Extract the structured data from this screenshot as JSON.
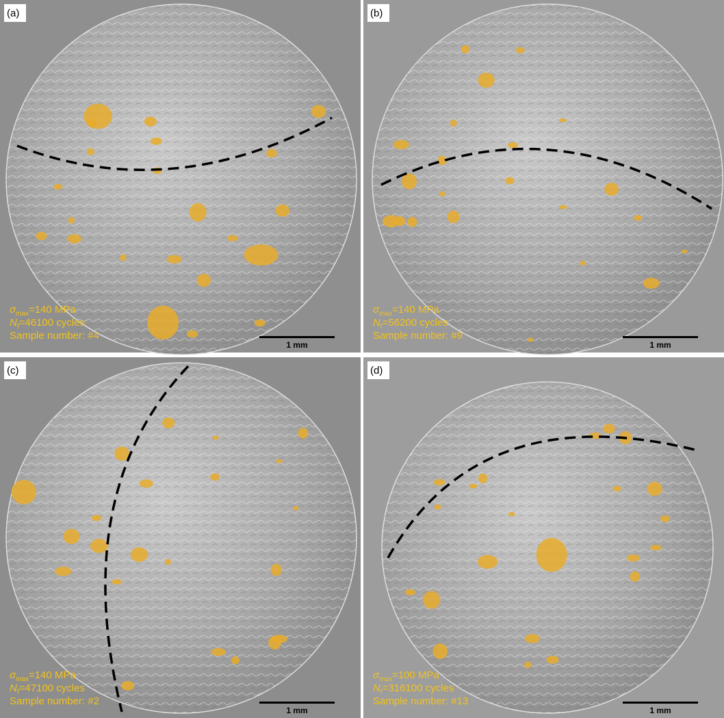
{
  "panels": [
    {
      "label": "(a)",
      "stress": {
        "symbol": "σ",
        "subscript": "max",
        "text": "=140 MPa"
      },
      "cycles": {
        "symbol": "N",
        "subscript": "f",
        "text": "=46100 cycles"
      },
      "sample": "Sample number: #4",
      "scale": "1 mm"
    },
    {
      "label": "(b)",
      "stress": {
        "symbol": "σ",
        "subscript": "max",
        "text": "=140 MPa"
      },
      "cycles": {
        "symbol": "N",
        "subscript": "f",
        "text": "=56200 cycles"
      },
      "sample": "Sample number: #9",
      "scale": "1 mm"
    },
    {
      "label": "(c)",
      "stress": {
        "symbol": "σ",
        "subscript": "max",
        "text": "=140 MPa"
      },
      "cycles": {
        "symbol": "N",
        "subscript": "f",
        "text": "=47100 cycles"
      },
      "sample": "Sample number: #2",
      "scale": "1 mm"
    },
    {
      "label": "(d)",
      "stress": {
        "symbol": "σ",
        "subscript": "max",
        "text": "=100 MPa"
      },
      "cycles": {
        "symbol": "N",
        "subscript": "f",
        "text": "=316100 cycles"
      },
      "sample": "Sample number: #13",
      "scale": "1 mm"
    }
  ]
}
